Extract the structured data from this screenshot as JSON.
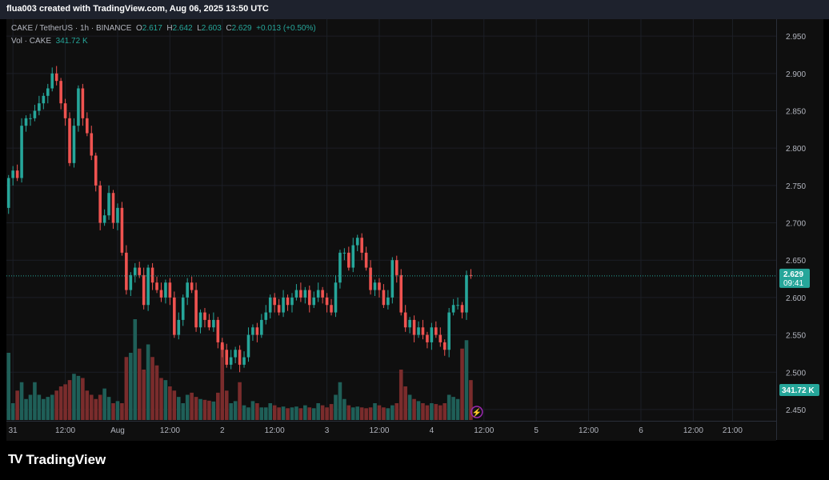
{
  "header": {
    "credit": "flua003 created with TradingView.com, Aug 06, 2025 13:50 UTC"
  },
  "legend": {
    "symbol": "CAKE / TetherUS · 1h · BINANCE",
    "o_label": "O",
    "o_value": "2.617",
    "h_label": "H",
    "h_value": "2.642",
    "l_label": "L",
    "l_value": "2.603",
    "c_label": "C",
    "c_value": "2.629",
    "change": "+0.013 (+0.50%)",
    "vol_label": "Vol · CAKE",
    "vol_value": "341.72 K"
  },
  "price_tag": {
    "price": "2.629",
    "countdown": "09:41"
  },
  "volume_tag": {
    "value": "341.72 K"
  },
  "brand": {
    "name": "TradingView",
    "logo": "TV"
  },
  "colors": {
    "up": "#26a69a",
    "down": "#ef5350",
    "up_vol": "#1f5f58",
    "down_vol": "#7a2c2c",
    "background": "#0f0f0f"
  },
  "chart_data": {
    "type": "candlestick",
    "symbol": "CAKE/USDT",
    "interval": "1h",
    "exchange": "BINANCE",
    "y_ticks": [
      "2.950",
      "2.900",
      "2.850",
      "2.800",
      "2.750",
      "2.700",
      "2.650",
      "2.600",
      "2.550",
      "2.500",
      "2.450"
    ],
    "ylim": [
      2.436,
      2.963
    ],
    "x_ticks": [
      {
        "label": "31",
        "bar": 1
      },
      {
        "label": "12:00",
        "bar": 13
      },
      {
        "label": "Aug",
        "bar": 25
      },
      {
        "label": "12:00",
        "bar": 37
      },
      {
        "label": "2",
        "bar": 49
      },
      {
        "label": "12:00",
        "bar": 61
      },
      {
        "label": "3",
        "bar": 73
      },
      {
        "label": "12:00",
        "bar": 85
      },
      {
        "label": "4",
        "bar": 97
      },
      {
        "label": "12:00",
        "bar": 109
      },
      {
        "label": "5",
        "bar": 121
      },
      {
        "label": "12:00",
        "bar": 133
      },
      {
        "label": "6",
        "bar": 145
      },
      {
        "label": "12:00",
        "bar": 157
      },
      {
        "label": "21:00",
        "bar": 166
      }
    ],
    "last_close": 2.629,
    "closes": [
      2.76,
      2.77,
      2.76,
      2.83,
      2.84,
      2.84,
      2.85,
      2.86,
      2.87,
      2.88,
      2.9,
      2.89,
      2.86,
      2.84,
      2.78,
      2.83,
      2.88,
      2.84,
      2.82,
      2.79,
      2.75,
      2.7,
      2.71,
      2.74,
      2.7,
      2.72,
      2.66,
      2.61,
      2.63,
      2.64,
      2.63,
      2.59,
      2.64,
      2.62,
      2.61,
      2.6,
      2.62,
      2.6,
      2.55,
      2.57,
      2.6,
      2.62,
      2.61,
      2.56,
      2.58,
      2.57,
      2.56,
      2.57,
      2.54,
      2.53,
      2.51,
      2.52,
      2.53,
      2.51,
      2.52,
      2.55,
      2.56,
      2.55,
      2.57,
      2.58,
      2.6,
      2.59,
      2.58,
      2.6,
      2.59,
      2.6,
      2.61,
      2.6,
      2.61,
      2.59,
      2.6,
      2.61,
      2.6,
      2.59,
      2.58,
      2.62,
      2.66,
      2.66,
      2.64,
      2.67,
      2.68,
      2.66,
      2.64,
      2.61,
      2.62,
      2.61,
      2.59,
      2.6,
      2.65,
      2.63,
      2.58,
      2.56,
      2.57,
      2.55,
      2.56,
      2.55,
      2.54,
      2.56,
      2.55,
      2.54,
      2.53,
      2.58,
      2.59,
      2.59,
      2.58,
      2.63,
      2.629
    ],
    "volumes": [
      160,
      40,
      70,
      90,
      50,
      60,
      90,
      60,
      50,
      55,
      60,
      70,
      80,
      85,
      95,
      110,
      105,
      100,
      70,
      60,
      50,
      60,
      75,
      55,
      40,
      45,
      40,
      150,
      160,
      240,
      170,
      120,
      180,
      150,
      130,
      100,
      95,
      80,
      70,
      55,
      40,
      60,
      65,
      55,
      50,
      48,
      46,
      44,
      65,
      180,
      70,
      40,
      45,
      90,
      35,
      30,
      45,
      40,
      30,
      30,
      40,
      35,
      30,
      32,
      28,
      30,
      32,
      28,
      35,
      30,
      28,
      40,
      35,
      30,
      38,
      60,
      90,
      50,
      35,
      30,
      32,
      30,
      28,
      30,
      40,
      35,
      30,
      28,
      35,
      40,
      120,
      80,
      60,
      50,
      45,
      40,
      35,
      40,
      38,
      35,
      40,
      60,
      55,
      50,
      170,
      190,
      95
    ]
  }
}
